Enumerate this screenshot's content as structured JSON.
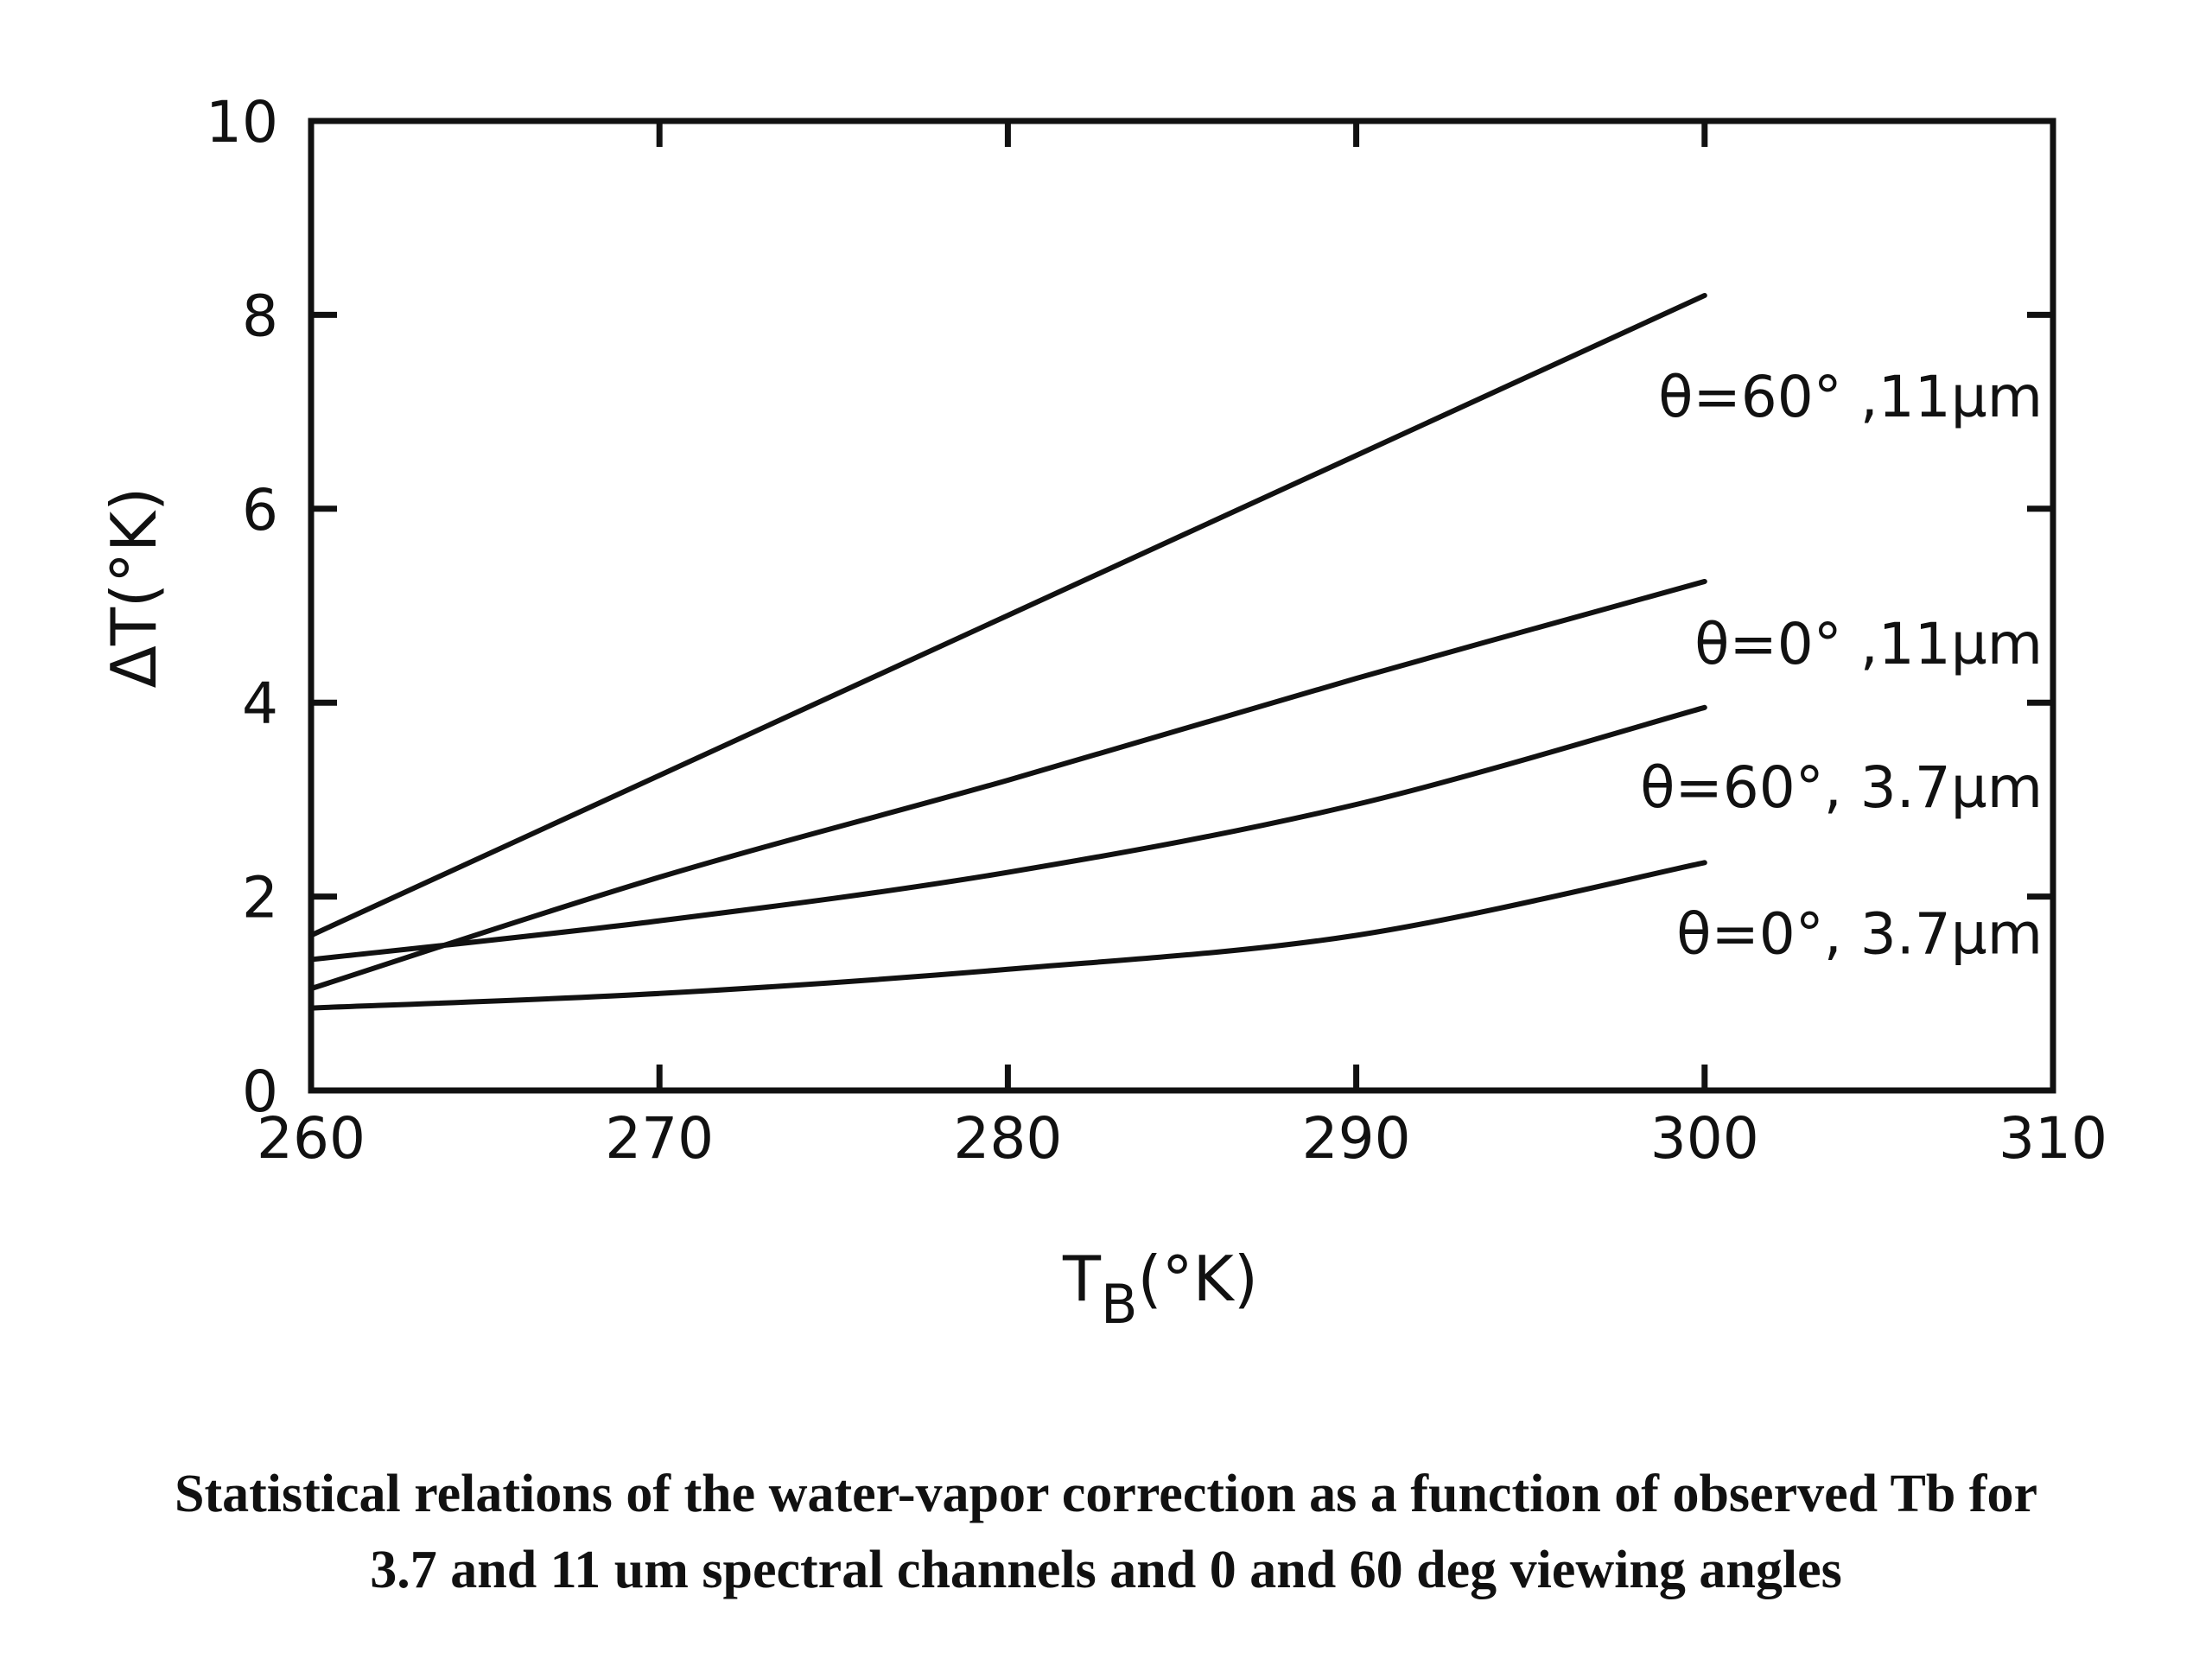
{
  "chart_data": {
    "type": "line",
    "xlabel": "T",
    "xlabel_sub": "B",
    "xlabel_unit": "(°K)",
    "ylabel": "ΔT(°K)",
    "xlim": [
      260,
      310
    ],
    "ylim": [
      0,
      10
    ],
    "x_ticks": [
      "260",
      "270",
      "280",
      "290",
      "300",
      "310"
    ],
    "y_ticks": [
      "0",
      "2",
      "4",
      "6",
      "8",
      "10"
    ],
    "grid": false,
    "series": [
      {
        "name": "θ=60° ,11µm",
        "x": [
          260,
          270,
          280,
          290,
          300
        ],
        "y": [
          1.6,
          3.25,
          4.9,
          6.55,
          8.2
        ]
      },
      {
        "name": "θ=0° ,11µm",
        "x": [
          260,
          270,
          280,
          290,
          300
        ],
        "y": [
          1.05,
          2.2,
          3.2,
          4.25,
          5.25
        ]
      },
      {
        "name": "θ=60°, 3.7µm",
        "x": [
          260,
          270,
          280,
          290,
          300
        ],
        "y": [
          1.35,
          1.75,
          2.25,
          2.95,
          3.95
        ]
      },
      {
        "name": "θ=0°, 3.7µm",
        "x": [
          260,
          270,
          280,
          290,
          300
        ],
        "y": [
          0.85,
          1.0,
          1.25,
          1.6,
          2.35
        ]
      }
    ]
  },
  "caption": {
    "line1": "Statistical relations of the water-vapor correction as a function of observed Tb for",
    "line2": "3.7 and 11 um spectral channels and 0 and 60 deg viewing angles"
  }
}
